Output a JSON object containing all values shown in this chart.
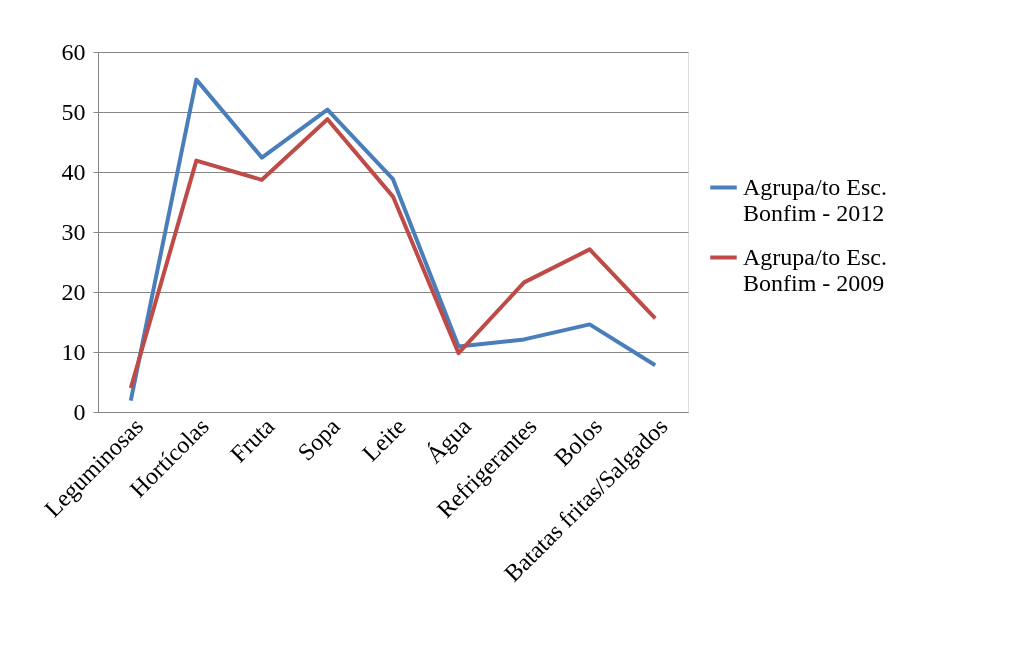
{
  "chart_data": {
    "type": "line",
    "categories": [
      "Leguminosas",
      "Hortícolas",
      "Fruta",
      "Sopa",
      "Leite",
      "Água",
      "Refrigerantes",
      "Bolos",
      "Batatas fritas/Salgados"
    ],
    "series": [
      {
        "name": "Agrupa/to Esc. Bonfim - 2012",
        "color": "#4a7ebb",
        "values": [
          1.9,
          55.4,
          42.4,
          50.4,
          38.8,
          10.9,
          12.1,
          14.6,
          7.8
        ]
      },
      {
        "name": "Agrupa/to Esc. Bonfim - 2009",
        "color": "#be4b48",
        "values": [
          4.0,
          41.9,
          38.7,
          48.8,
          35.9,
          9.8,
          21.6,
          27.1,
          15.6
        ]
      }
    ],
    "ylim": [
      0,
      60
    ],
    "yticks": [
      0,
      10,
      20,
      30,
      40,
      50,
      60
    ],
    "grid": "y",
    "legend": "right",
    "marker": "none",
    "line_style": "solid"
  }
}
